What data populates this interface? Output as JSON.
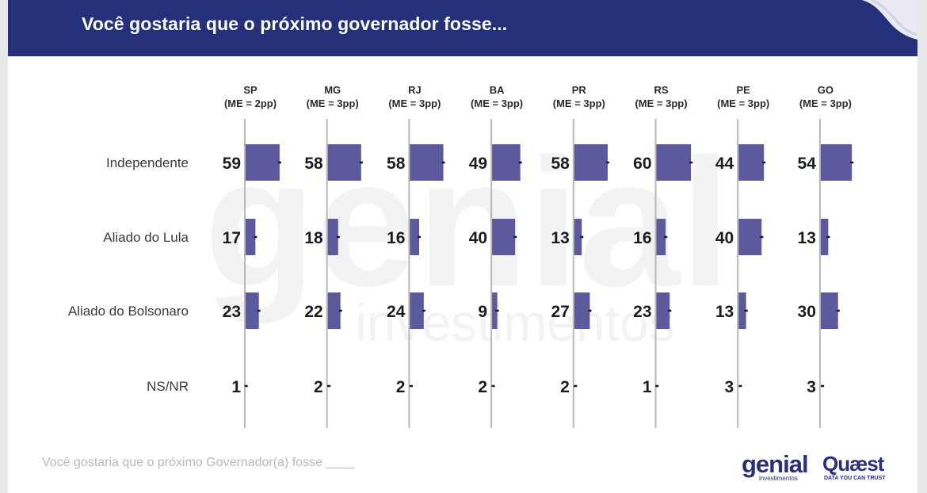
{
  "header": {
    "title": "Você gostaria que o próximo governador fosse..."
  },
  "footer": {
    "note": "Você gostaria que o próximo Governador(a) fosse ____"
  },
  "logos": {
    "genial": {
      "main": "genial",
      "sub": "investimentos"
    },
    "quaest": {
      "main": "Quæst",
      "sub": "DATA YOU CAN TRUST"
    }
  },
  "watermark": {
    "main": "genial",
    "sub": "investimentos"
  },
  "colors": {
    "header": "#25307a",
    "bar": "#5c5a9c",
    "axis": "#b8b8b8",
    "brand": "#2a2f78"
  },
  "chart_data": {
    "type": "bar",
    "orientation": "horizontal",
    "panels": [
      {
        "state": "SP",
        "margin": "(ME = 2pp)"
      },
      {
        "state": "MG",
        "margin": "(ME = 3pp)"
      },
      {
        "state": "RJ",
        "margin": "(ME = 3pp)"
      },
      {
        "state": "BA",
        "margin": "(ME = 3pp)"
      },
      {
        "state": "PR",
        "margin": "(ME = 3pp)"
      },
      {
        "state": "RS",
        "margin": "(ME = 3pp)"
      },
      {
        "state": "PE",
        "margin": "(ME = 3pp)"
      },
      {
        "state": "GO",
        "margin": "(ME = 3pp)"
      }
    ],
    "categories": [
      "Independente",
      "Aliado do Lula",
      "Aliado do Bolsonaro",
      "NS/NR"
    ],
    "values": [
      [
        59,
        17,
        23,
        1
      ],
      [
        58,
        18,
        22,
        2
      ],
      [
        58,
        16,
        24,
        2
      ],
      [
        49,
        40,
        9,
        2
      ],
      [
        58,
        13,
        27,
        2
      ],
      [
        60,
        16,
        23,
        1
      ],
      [
        44,
        40,
        13,
        3
      ],
      [
        54,
        13,
        30,
        3
      ]
    ],
    "error_margins": [
      2,
      3,
      3,
      3,
      3,
      3,
      3,
      3
    ]
  }
}
